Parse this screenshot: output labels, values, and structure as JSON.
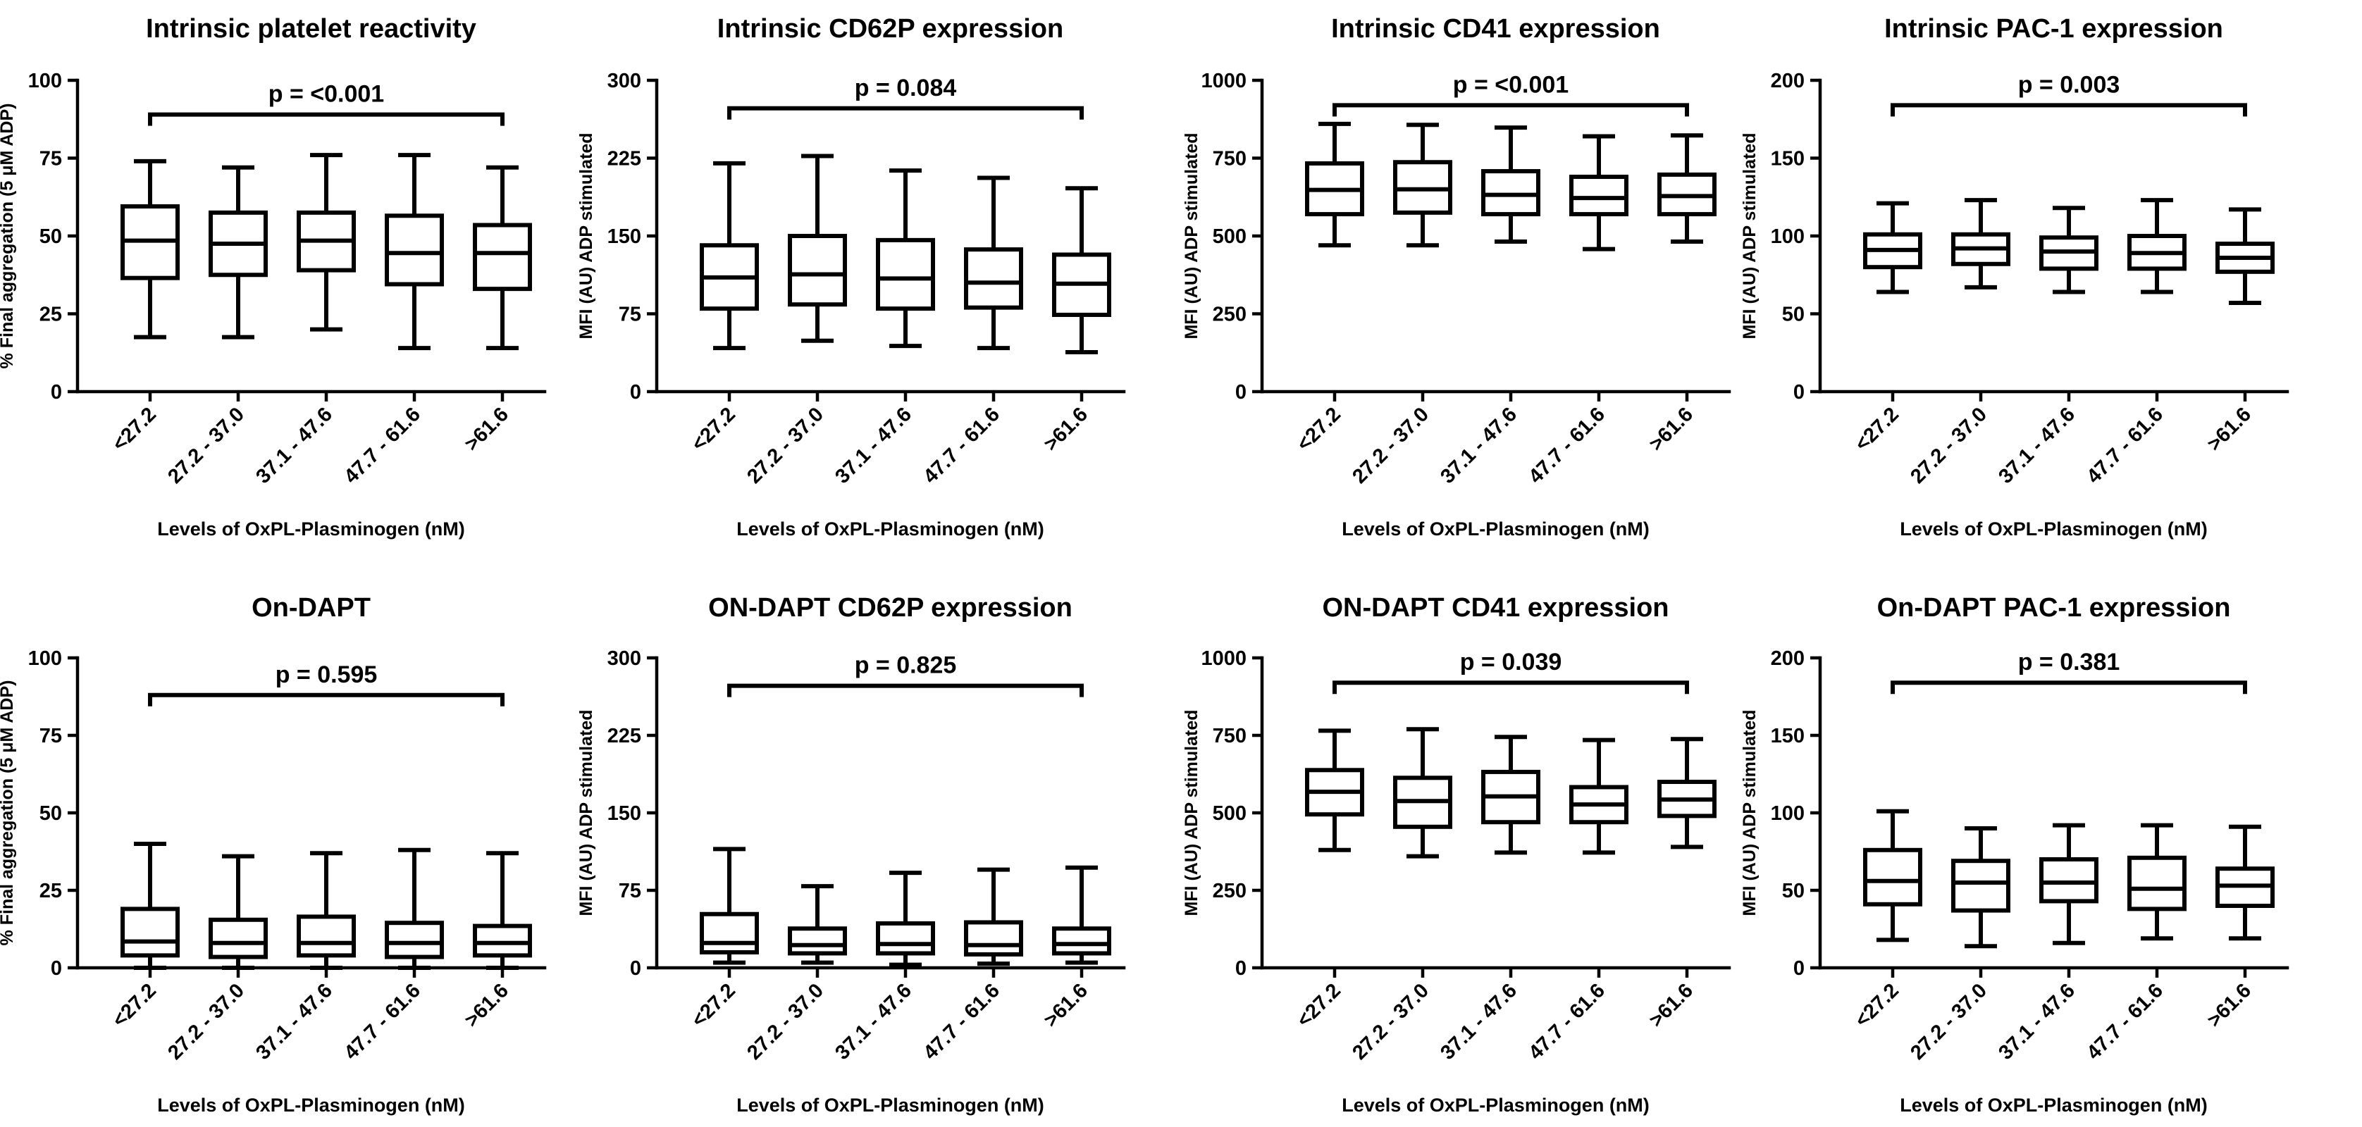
{
  "figure": {
    "x_axis_label": "Levels of OxPL-Plasminogen (nM)"
  },
  "chart_data": [
    {
      "type": "box",
      "title": "Intrinsic platelet reactivity",
      "ylabel": "% Final aggregation (5 μM ADP)",
      "xlabel": "Levels of OxPL-Plasminogen (nM)",
      "ylim": [
        0,
        100
      ],
      "yticks": [
        "0",
        "25",
        "50",
        "75",
        "100"
      ],
      "categories": [
        "<27.2",
        "27.2 - 37.0",
        "37.1 - 47.6",
        "47.7 - 61.6",
        ">61.6"
      ],
      "boxes": [
        {
          "min": 17.5,
          "q1": 36.5,
          "median": 48.5,
          "q3": 59.5,
          "max": 74
        },
        {
          "min": 17.5,
          "q1": 37.5,
          "median": 47.5,
          "q3": 57.5,
          "max": 72
        },
        {
          "min": 20,
          "q1": 39,
          "median": 48.5,
          "q3": 57.5,
          "max": 76
        },
        {
          "min": 14,
          "q1": 34.5,
          "median": 44.5,
          "q3": 56.5,
          "max": 76
        },
        {
          "min": 14,
          "q1": 33,
          "median": 44.5,
          "q3": 53.5,
          "max": 72
        }
      ],
      "p_value": "p = <0.001",
      "bracket_level": 89
    },
    {
      "type": "box",
      "title": "Intrinsic CD62P expression",
      "ylabel": "MFI (AU) ADP stimulated",
      "xlabel": "Levels of OxPL-Plasminogen (nM)",
      "ylim": [
        0,
        300
      ],
      "yticks": [
        "0",
        "75",
        "150",
        "225",
        "300"
      ],
      "categories": [
        "<27.2",
        "27.2 - 37.0",
        "37.1 - 47.6",
        "47.7 - 61.6",
        ">61.6"
      ],
      "boxes": [
        {
          "min": 42,
          "q1": 80,
          "median": 110,
          "q3": 141,
          "max": 220
        },
        {
          "min": 49,
          "q1": 84,
          "median": 113,
          "q3": 150,
          "max": 227
        },
        {
          "min": 44,
          "q1": 80,
          "median": 109,
          "q3": 146,
          "max": 213
        },
        {
          "min": 42,
          "q1": 81,
          "median": 105,
          "q3": 137,
          "max": 206
        },
        {
          "min": 38,
          "q1": 74,
          "median": 104,
          "q3": 132,
          "max": 196
        }
      ],
      "p_value": "p = 0.084",
      "bracket_level": 273
    },
    {
      "type": "box",
      "title": "Intrinsic CD41 expression",
      "ylabel": "MFI (AU) ADP stimulated",
      "xlabel": "Levels of OxPL-Plasminogen (nM)",
      "ylim": [
        0,
        1000
      ],
      "yticks": [
        "0",
        "250",
        "500",
        "750",
        "1000"
      ],
      "categories": [
        "<27.2",
        "27.2 - 37.0",
        "37.1 - 47.6",
        "47.7 - 61.6",
        ">61.6"
      ],
      "boxes": [
        {
          "min": 470,
          "q1": 570,
          "median": 648,
          "q3": 733,
          "max": 860
        },
        {
          "min": 470,
          "q1": 575,
          "median": 650,
          "q3": 737,
          "max": 857
        },
        {
          "min": 482,
          "q1": 570,
          "median": 632,
          "q3": 708,
          "max": 848
        },
        {
          "min": 458,
          "q1": 570,
          "median": 622,
          "q3": 690,
          "max": 820
        },
        {
          "min": 482,
          "q1": 570,
          "median": 628,
          "q3": 697,
          "max": 823
        }
      ],
      "p_value": "p = <0.001",
      "bracket_level": 920
    },
    {
      "type": "box",
      "title": "Intrinsic PAC-1 expression",
      "ylabel": "MFI (AU) ADP stimulated",
      "xlabel": "Levels of OxPL-Plasminogen (nM)",
      "ylim": [
        0,
        200
      ],
      "yticks": [
        "0",
        "50",
        "100",
        "150",
        "200"
      ],
      "categories": [
        "<27.2",
        "27.2 - 37.0",
        "37.1 - 47.6",
        "47.7 - 61.6",
        ">61.6"
      ],
      "boxes": [
        {
          "min": 64,
          "q1": 80,
          "median": 91,
          "q3": 101,
          "max": 121
        },
        {
          "min": 67,
          "q1": 82,
          "median": 92,
          "q3": 101,
          "max": 123
        },
        {
          "min": 64,
          "q1": 79,
          "median": 90,
          "q3": 99,
          "max": 118
        },
        {
          "min": 64,
          "q1": 79,
          "median": 89,
          "q3": 100,
          "max": 123
        },
        {
          "min": 57,
          "q1": 77,
          "median": 86,
          "q3": 95,
          "max": 117
        }
      ],
      "p_value": "p = 0.003",
      "bracket_level": 184
    },
    {
      "type": "box",
      "title": "On-DAPT",
      "ylabel": "% Final aggregation (5 μM ADP)",
      "xlabel": "Levels of OxPL-Plasminogen (nM)",
      "ylim": [
        0,
        100
      ],
      "yticks": [
        "0",
        "25",
        "50",
        "75",
        "100"
      ],
      "categories": [
        "<27.2",
        "27.2 - 37.0",
        "37.1 - 47.6",
        "47.7 - 61.6",
        ">61.6"
      ],
      "boxes": [
        {
          "min": 0,
          "q1": 4,
          "median": 8.5,
          "q3": 19,
          "max": 40
        },
        {
          "min": 0,
          "q1": 3.5,
          "median": 8,
          "q3": 15.5,
          "max": 36
        },
        {
          "min": 0,
          "q1": 4,
          "median": 8,
          "q3": 16.5,
          "max": 37
        },
        {
          "min": 0,
          "q1": 3.5,
          "median": 8,
          "q3": 14.5,
          "max": 38
        },
        {
          "min": 0,
          "q1": 4,
          "median": 8,
          "q3": 13.5,
          "max": 37
        }
      ],
      "p_value": "p = 0.595",
      "bracket_level": 88
    },
    {
      "type": "box",
      "title": "ON-DAPT CD62P expression",
      "ylabel": "MFI (AU) ADP stimulated",
      "xlabel": "Levels of OxPL-Plasminogen (nM)",
      "ylim": [
        0,
        300
      ],
      "yticks": [
        "0",
        "75",
        "150",
        "225",
        "300"
      ],
      "categories": [
        "<27.2",
        "27.2 - 37.0",
        "37.1 - 47.6",
        "47.7 - 61.6",
        ">61.6"
      ],
      "boxes": [
        {
          "min": 5,
          "q1": 15,
          "median": 24,
          "q3": 52,
          "max": 115
        },
        {
          "min": 5,
          "q1": 14,
          "median": 22,
          "q3": 38,
          "max": 79
        },
        {
          "min": 3,
          "q1": 14,
          "median": 23,
          "q3": 43,
          "max": 92
        },
        {
          "min": 4,
          "q1": 13,
          "median": 22,
          "q3": 44,
          "max": 95
        },
        {
          "min": 5,
          "q1": 14,
          "median": 23,
          "q3": 38,
          "max": 97
        }
      ],
      "p_value": "p = 0.825",
      "bracket_level": 273
    },
    {
      "type": "box",
      "title": "ON-DAPT CD41 expression",
      "ylabel": "MFI (AU) ADP stimulated",
      "xlabel": "Levels of OxPL-Plasminogen (nM)",
      "ylim": [
        0,
        1000
      ],
      "yticks": [
        "0",
        "250",
        "500",
        "750",
        "1000"
      ],
      "categories": [
        "<27.2",
        "27.2 - 37.0",
        "37.1 - 47.6",
        "47.7 - 61.6",
        ">61.6"
      ],
      "boxes": [
        {
          "min": 380,
          "q1": 495,
          "median": 568,
          "q3": 638,
          "max": 765
        },
        {
          "min": 360,
          "q1": 455,
          "median": 538,
          "q3": 613,
          "max": 770
        },
        {
          "min": 372,
          "q1": 470,
          "median": 553,
          "q3": 632,
          "max": 745
        },
        {
          "min": 372,
          "q1": 470,
          "median": 527,
          "q3": 583,
          "max": 735
        },
        {
          "min": 390,
          "q1": 490,
          "median": 543,
          "q3": 600,
          "max": 738
        }
      ],
      "p_value": "p = 0.039",
      "bracket_level": 920
    },
    {
      "type": "box",
      "title": "On-DAPT PAC-1 expression",
      "ylabel": "MFI (AU) ADP stimulated",
      "xlabel": "Levels of OxPL-Plasminogen (nM)",
      "ylim": [
        0,
        200
      ],
      "yticks": [
        "0",
        "50",
        "100",
        "150",
        "200"
      ],
      "categories": [
        "<27.2",
        "27.2 - 37.0",
        "37.1 - 47.6",
        "47.7 - 61.6",
        ">61.6"
      ],
      "boxes": [
        {
          "min": 18,
          "q1": 41,
          "median": 56,
          "q3": 76,
          "max": 101
        },
        {
          "min": 14,
          "q1": 37,
          "median": 55,
          "q3": 69,
          "max": 90
        },
        {
          "min": 16,
          "q1": 43,
          "median": 55,
          "q3": 70,
          "max": 92
        },
        {
          "min": 19,
          "q1": 38,
          "median": 51,
          "q3": 71,
          "max": 92
        },
        {
          "min": 19,
          "q1": 40,
          "median": 53,
          "q3": 64,
          "max": 91
        }
      ],
      "p_value": "p = 0.381",
      "bracket_level": 184
    }
  ]
}
